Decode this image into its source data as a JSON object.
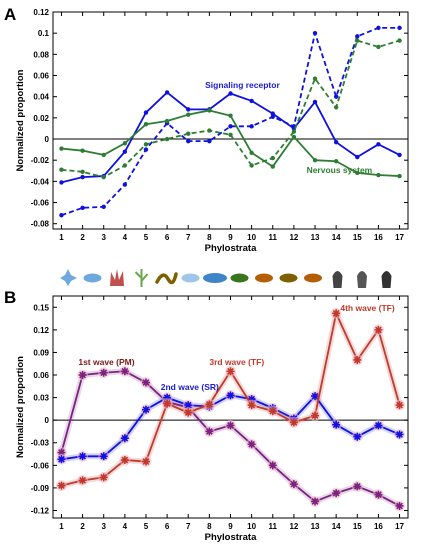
{
  "figure": {
    "organisms": [
      "amoeba-icon",
      "protist-icon",
      "coral-icon",
      "plant-icon",
      "worm-icon",
      "lancelet-icon",
      "fish-icon",
      "lizard-icon",
      "frog-icon",
      "dinosaur-icon",
      "kangaroo-icon",
      "primate-icon",
      "elephant-icon",
      "monkey-icon"
    ]
  },
  "chart_data": [
    {
      "panel": "A",
      "type": "line",
      "xlabel": "Phylostrata",
      "ylabel": "Normalized proportion",
      "x": [
        1,
        2,
        3,
        4,
        5,
        6,
        7,
        8,
        9,
        10,
        11,
        12,
        13,
        14,
        15,
        16,
        17
      ],
      "xlim": [
        0.6,
        17.4
      ],
      "ylim": [
        -0.085,
        0.12
      ],
      "yticks": [
        -0.08,
        -0.06,
        -0.04,
        -0.02,
        0,
        0.02,
        0.04,
        0.06,
        0.08,
        0.1,
        0.12
      ],
      "ytick_labels": [
        "-0.08",
        "-0.06",
        "-0.04",
        "-0.02",
        "0",
        "0.02",
        "0.04",
        "0.06",
        "0.08",
        "0.1",
        "0.12"
      ],
      "grid": false,
      "annotations": [
        {
          "text": "Signaling receptor",
          "x": 7.8,
          "y": 0.048,
          "color": "#1a1ad6"
        },
        {
          "text": "Nervous system",
          "x": 12.6,
          "y": -0.032,
          "color": "#2e7d32"
        }
      ],
      "series": [
        {
          "color": "#1010e0",
          "style": "solid",
          "marker": "circle",
          "values": [
            -0.041,
            -0.036,
            -0.035,
            -0.012,
            0.025,
            0.044,
            0.028,
            0.028,
            0.043,
            0.036,
            0.024,
            0.01,
            0.035,
            -0.003,
            -0.017,
            -0.005,
            -0.015
          ]
        },
        {
          "color": "#1010e0",
          "style": "dashed",
          "marker": "circle",
          "values": [
            -0.072,
            -0.065,
            -0.064,
            -0.043,
            -0.01,
            0.015,
            -0.002,
            -0.002,
            0.012,
            0.012,
            0.021,
            0.012,
            0.1,
            0.04,
            0.097,
            0.105,
            0.105
          ]
        },
        {
          "color": "#2e7d32",
          "style": "solid",
          "marker": "circle",
          "values": [
            -0.009,
            -0.011,
            -0.015,
            -0.004,
            0.014,
            0.017,
            0.023,
            0.027,
            0.022,
            -0.013,
            -0.026,
            0.002,
            -0.02,
            -0.021,
            -0.032,
            -0.034,
            -0.035
          ]
        },
        {
          "color": "#2e7d32",
          "style": "dashed",
          "marker": "circle",
          "values": [
            -0.029,
            -0.031,
            -0.036,
            -0.025,
            -0.005,
            0.0,
            0.005,
            0.008,
            0.004,
            -0.025,
            -0.018,
            0.007,
            0.057,
            0.03,
            0.093,
            0.087,
            0.093
          ]
        }
      ]
    },
    {
      "panel": "B",
      "type": "line",
      "xlabel": "Phylostrata",
      "ylabel": "Normalized proportion",
      "x": [
        1,
        2,
        3,
        4,
        5,
        6,
        7,
        8,
        9,
        10,
        11,
        12,
        13,
        14,
        15,
        16,
        17
      ],
      "xlim": [
        0.6,
        17.4
      ],
      "ylim": [
        -0.13,
        0.165
      ],
      "yticks": [
        -0.12,
        -0.09,
        -0.06,
        -0.03,
        0,
        0.03,
        0.06,
        0.09,
        0.12,
        0.15
      ],
      "ytick_labels": [
        "-0.12",
        "-0.09",
        "-0.06",
        "-0.03",
        "0",
        "0.03",
        "0.06",
        "0.09",
        "0.12",
        "0.15"
      ],
      "grid": false,
      "annotations": [
        {
          "text": "1st wave (PM)",
          "x": 1.8,
          "y": 0.073,
          "color": "#7b1a1a"
        },
        {
          "text": "2nd wave (SR)",
          "x": 5.7,
          "y": 0.04,
          "color": "#1a1ad6"
        },
        {
          "text": "3rd wave (TF)",
          "x": 8.0,
          "y": 0.073,
          "color": "#c0392b"
        },
        {
          "text": "4th wave (TF)",
          "x": 14.2,
          "y": 0.145,
          "color": "#c0392b"
        }
      ],
      "series": [
        {
          "name": "1st wave (PM)",
          "color": "#7a2280",
          "style": "solid",
          "marker": "star",
          "values": [
            -0.043,
            0.06,
            0.063,
            0.065,
            0.05,
            0.024,
            0.017,
            -0.015,
            -0.007,
            -0.032,
            -0.06,
            -0.085,
            -0.108,
            -0.097,
            -0.088,
            -0.099,
            -0.114
          ]
        },
        {
          "name": "2nd wave (SR)",
          "color": "#1010e0",
          "style": "solid",
          "marker": "star",
          "values": [
            -0.052,
            -0.048,
            -0.048,
            -0.024,
            0.014,
            0.03,
            0.02,
            0.018,
            0.033,
            0.028,
            0.016,
            0.002,
            0.032,
            -0.006,
            -0.022,
            -0.007,
            -0.019
          ]
        },
        {
          "name": "3rd wave (TF)",
          "color": "#c0392b",
          "style": "solid",
          "marker": "star",
          "values": [
            -0.087,
            -0.08,
            -0.076,
            -0.053,
            -0.055,
            0.022,
            0.01,
            0.021,
            0.065,
            0.02,
            0.012,
            -0.003,
            0.006,
            0.142,
            0.08,
            0.12,
            0.02
          ]
        }
      ]
    }
  ]
}
